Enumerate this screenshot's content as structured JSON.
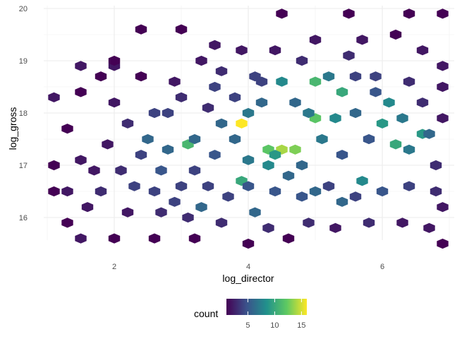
{
  "chart_data": {
    "type": "hexbin",
    "xlabel": "log_director",
    "ylabel": "log_gross",
    "xlim": [
      1.0,
      7.0
    ],
    "ylim": [
      15.4,
      20.1
    ],
    "x_ticks": [
      2,
      4,
      6
    ],
    "y_ticks": [
      16,
      17,
      18,
      19,
      20
    ],
    "grid": true,
    "legend": {
      "title": "count",
      "position": "bottom",
      "ticks": [
        5,
        10,
        15
      ],
      "range": [
        1,
        16
      ],
      "colormap": "viridis"
    },
    "hex_grid": {
      "x0": 1.1,
      "dx": 0.2,
      "y0": 15.5,
      "dy": 0.1
    },
    "bins": [
      [
        1.1,
        18.3,
        2
      ],
      [
        1.5,
        18.9,
        2
      ],
      [
        2.0,
        18.9,
        2
      ],
      [
        2.0,
        19.0,
        1
      ],
      [
        2.4,
        19.6,
        1
      ],
      [
        3.0,
        19.6,
        1
      ],
      [
        3.5,
        19.3,
        2
      ],
      [
        4.5,
        19.9,
        1
      ],
      [
        5.5,
        19.9,
        1
      ],
      [
        6.9,
        19.9,
        1
      ],
      [
        6.4,
        19.9,
        1
      ],
      [
        1.3,
        17.7,
        1
      ],
      [
        1.1,
        17.0,
        1
      ],
      [
        1.5,
        17.1,
        2
      ],
      [
        1.3,
        16.5,
        2
      ],
      [
        1.1,
        16.5,
        1
      ],
      [
        1.3,
        15.9,
        1
      ],
      [
        1.5,
        15.6,
        2
      ],
      [
        3.9,
        17.8,
        16
      ],
      [
        4.5,
        17.3,
        14
      ],
      [
        4.7,
        17.3,
        13
      ],
      [
        4.3,
        17.3,
        12
      ],
      [
        5.0,
        17.9,
        12
      ],
      [
        6.2,
        17.4,
        10
      ],
      [
        6.6,
        17.6,
        9
      ],
      [
        3.1,
        17.4,
        11
      ],
      [
        5.4,
        18.4,
        10
      ],
      [
        5.3,
        17.9,
        8
      ],
      [
        6.0,
        17.8,
        9
      ],
      [
        5.0,
        18.6,
        11
      ],
      [
        5.2,
        18.7,
        7
      ],
      [
        6.3,
        17.9,
        7
      ],
      [
        4.0,
        18.0,
        7
      ],
      [
        4.4,
        17.2,
        9
      ],
      [
        3.9,
        16.7,
        10
      ],
      [
        4.3,
        17.0,
        8
      ],
      [
        2.8,
        17.3,
        6
      ],
      [
        5.7,
        16.7,
        8
      ],
      [
        6.1,
        18.2,
        8
      ],
      [
        4.5,
        18.6,
        8
      ],
      [
        5.1,
        17.5,
        7
      ],
      [
        6.7,
        17.6,
        6
      ],
      [
        4.8,
        17.0,
        6
      ],
      [
        6.4,
        17.3,
        7
      ],
      [
        3.2,
        17.5,
        6
      ],
      [
        3.6,
        17.8,
        6
      ],
      [
        4.2,
        18.2,
        6
      ],
      [
        4.7,
        18.2,
        6
      ],
      [
        5.6,
        18.0,
        6
      ],
      [
        3.8,
        17.5,
        6
      ],
      [
        4.0,
        17.1,
        7
      ],
      [
        4.6,
        16.8,
        6
      ],
      [
        5.0,
        16.5,
        6
      ],
      [
        2.5,
        17.5,
        6
      ],
      [
        3.3,
        16.2,
        6
      ],
      [
        4.1,
        16.1,
        6
      ],
      [
        2.7,
        16.9,
        5
      ],
      [
        5.4,
        16.3,
        6
      ],
      [
        2.8,
        18.0,
        4
      ],
      [
        3.0,
        18.3,
        3
      ],
      [
        3.5,
        18.5,
        4
      ],
      [
        2.2,
        17.8,
        3
      ],
      [
        2.6,
        18.0,
        4
      ],
      [
        2.4,
        17.2,
        4
      ],
      [
        2.1,
        16.9,
        3
      ],
      [
        1.8,
        16.5,
        3
      ],
      [
        2.3,
        16.6,
        4
      ],
      [
        2.6,
        16.5,
        4
      ],
      [
        3.0,
        16.6,
        4
      ],
      [
        3.4,
        16.6,
        4
      ],
      [
        3.7,
        16.4,
        4
      ],
      [
        4.0,
        16.6,
        5
      ],
      [
        4.4,
        16.5,
        5
      ],
      [
        4.8,
        16.4,
        5
      ],
      [
        5.2,
        16.6,
        4
      ],
      [
        5.6,
        16.4,
        4
      ],
      [
        6.0,
        16.5,
        5
      ],
      [
        6.4,
        16.6,
        4
      ],
      [
        6.8,
        16.5,
        3
      ],
      [
        6.8,
        17.0,
        3
      ],
      [
        6.6,
        18.2,
        3
      ],
      [
        6.4,
        18.6,
        3
      ],
      [
        5.9,
        18.7,
        4
      ],
      [
        5.5,
        19.1,
        3
      ],
      [
        4.8,
        19.0,
        3
      ],
      [
        4.1,
        18.7,
        4
      ],
      [
        3.8,
        18.3,
        4
      ],
      [
        3.4,
        18.1,
        3
      ],
      [
        2.0,
        18.2,
        2
      ],
      [
        1.9,
        17.4,
        2
      ],
      [
        1.7,
        16.9,
        2
      ],
      [
        1.6,
        16.2,
        2
      ],
      [
        2.2,
        16.1,
        2
      ],
      [
        2.7,
        16.1,
        3
      ],
      [
        3.1,
        16.0,
        3
      ],
      [
        3.6,
        15.9,
        3
      ],
      [
        4.3,
        15.8,
        3
      ],
      [
        4.9,
        15.9,
        3
      ],
      [
        5.3,
        15.8,
        2
      ],
      [
        5.8,
        15.9,
        3
      ],
      [
        6.3,
        15.9,
        2
      ],
      [
        6.7,
        15.8,
        2
      ],
      [
        6.9,
        16.2,
        2
      ],
      [
        2.0,
        15.6,
        1
      ],
      [
        2.6,
        15.6,
        1
      ],
      [
        3.2,
        15.6,
        1
      ],
      [
        4.0,
        15.5,
        1
      ],
      [
        4.6,
        15.6,
        1
      ],
      [
        6.9,
        15.5,
        1
      ],
      [
        1.5,
        18.4,
        1
      ],
      [
        1.8,
        18.7,
        1
      ],
      [
        2.4,
        18.7,
        1
      ],
      [
        2.9,
        18.6,
        2
      ],
      [
        3.3,
        19.0,
        2
      ],
      [
        3.9,
        19.2,
        2
      ],
      [
        4.4,
        19.2,
        2
      ],
      [
        5.0,
        19.4,
        2
      ],
      [
        5.7,
        19.4,
        2
      ],
      [
        6.2,
        19.5,
        1
      ],
      [
        6.6,
        19.2,
        2
      ],
      [
        6.9,
        18.9,
        2
      ],
      [
        6.9,
        18.5,
        2
      ],
      [
        6.9,
        17.9,
        2
      ],
      [
        5.8,
        17.5,
        5
      ],
      [
        5.4,
        17.2,
        5
      ],
      [
        3.5,
        17.2,
        5
      ],
      [
        3.2,
        16.9,
        4
      ],
      [
        2.9,
        16.3,
        4
      ],
      [
        4.9,
        18.0,
        7
      ],
      [
        5.9,
        18.4,
        5
      ],
      [
        3.6,
        18.8,
        3
      ],
      [
        4.2,
        18.6,
        4
      ],
      [
        5.6,
        18.7,
        4
      ]
    ]
  }
}
